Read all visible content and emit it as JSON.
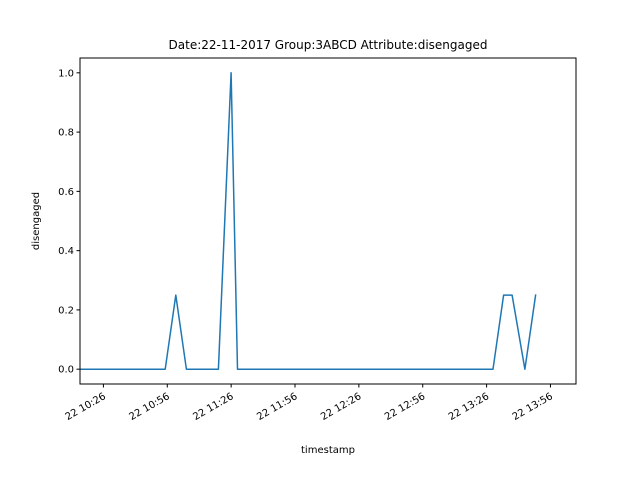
{
  "chart_data": {
    "type": "line",
    "title": "Date:22-11-2017  Group:3ABCD Attribute:disengaged",
    "xlabel": "timestamp",
    "ylabel": "disengaged",
    "x_ticks": [
      "22 10:26",
      "22 10:56",
      "22 11:26",
      "22 11:56",
      "22 12:26",
      "22 12:56",
      "22 13:26",
      "22 13:56"
    ],
    "y_ticks": [
      "0.0",
      "0.2",
      "0.4",
      "0.6",
      "0.8",
      "1.0"
    ],
    "xlim": [
      "22 10:15",
      "22 14:08"
    ],
    "ylim": [
      -0.05,
      1.05
    ],
    "grid": false,
    "series": [
      {
        "color": "#1f77b4",
        "x": [
          "22 10:15",
          "22 10:55",
          "22 11:00",
          "22 11:05",
          "22 11:20",
          "22 11:26",
          "22 11:29",
          "22 13:29",
          "22 13:34",
          "22 13:38",
          "22 13:44",
          "22 13:49"
        ],
        "y": [
          0,
          0,
          0.25,
          0,
          0,
          1.0,
          0,
          0,
          0.25,
          0.25,
          0,
          0.25
        ]
      }
    ]
  }
}
